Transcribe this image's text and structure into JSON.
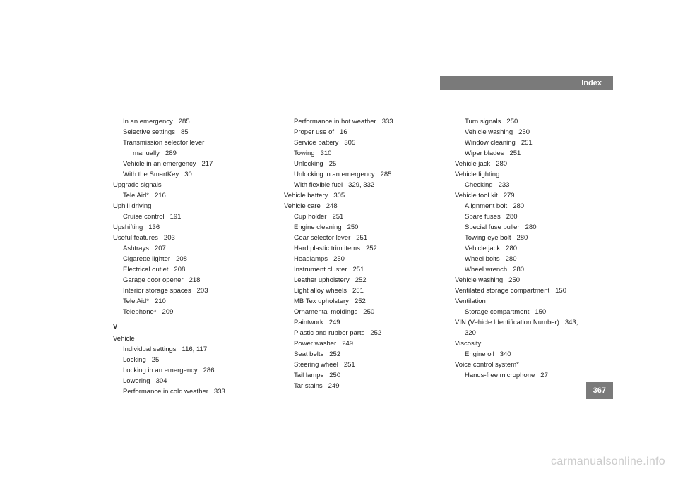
{
  "header": {
    "title": "Index"
  },
  "pagenum": "367",
  "watermark": "carmanualsonline.info",
  "col1": [
    {
      "indent": 1,
      "text": "In an emergency",
      "page": "285"
    },
    {
      "indent": 1,
      "text": "Selective settings",
      "page": "85"
    },
    {
      "indent": 1,
      "text": "Transmission selector lever"
    },
    {
      "indent": 2,
      "text": "manually",
      "page": "289"
    },
    {
      "indent": 1,
      "text": "Vehicle in an emergency",
      "page": "217"
    },
    {
      "indent": 1,
      "text": "With the SmartKey",
      "page": "30"
    },
    {
      "indent": 0,
      "text": "Upgrade signals"
    },
    {
      "indent": 1,
      "text": "Tele Aid*",
      "page": "216"
    },
    {
      "indent": 0,
      "text": "Uphill driving"
    },
    {
      "indent": 1,
      "text": "Cruise control",
      "page": "191"
    },
    {
      "indent": 0,
      "text": "Upshifting",
      "page": "136"
    },
    {
      "indent": 0,
      "text": "Useful features",
      "page": "203"
    },
    {
      "indent": 1,
      "text": "Ashtrays",
      "page": "207"
    },
    {
      "indent": 1,
      "text": "Cigarette lighter",
      "page": "208"
    },
    {
      "indent": 1,
      "text": "Electrical outlet",
      "page": "208"
    },
    {
      "indent": 1,
      "text": "Garage door opener",
      "page": "218"
    },
    {
      "indent": 1,
      "text": "Interior storage spaces",
      "page": "203"
    },
    {
      "indent": 1,
      "text": "Tele Aid*",
      "page": "210"
    },
    {
      "indent": 1,
      "text": "Telephone*",
      "page": "209"
    },
    {
      "indent": 0,
      "letter": "V"
    },
    {
      "indent": 0,
      "text": "Vehicle"
    },
    {
      "indent": 1,
      "text": "Individual settings",
      "page": "116, 117"
    },
    {
      "indent": 1,
      "text": "Locking",
      "page": "25"
    },
    {
      "indent": 1,
      "text": "Locking in an emergency",
      "page": "286"
    },
    {
      "indent": 1,
      "text": "Lowering",
      "page": "304"
    },
    {
      "indent": 1,
      "text": "Performance in cold weather",
      "page": "333"
    }
  ],
  "col2": [
    {
      "indent": 1,
      "text": "Performance in hot weather",
      "page": "333"
    },
    {
      "indent": 1,
      "text": "Proper use of",
      "page": "16"
    },
    {
      "indent": 1,
      "text": "Service battery",
      "page": "305"
    },
    {
      "indent": 1,
      "text": "Towing",
      "page": "310"
    },
    {
      "indent": 1,
      "text": "Unlocking",
      "page": "25"
    },
    {
      "indent": 1,
      "text": "Unlocking in an emergency",
      "page": "285"
    },
    {
      "indent": 1,
      "text": "With flexible fuel",
      "page": "329, 332"
    },
    {
      "indent": 0,
      "text": "Vehicle battery",
      "page": "305"
    },
    {
      "indent": 0,
      "text": "Vehicle care",
      "page": "248"
    },
    {
      "indent": 1,
      "text": "Cup holder",
      "page": "251"
    },
    {
      "indent": 1,
      "text": "Engine cleaning",
      "page": "250"
    },
    {
      "indent": 1,
      "text": "Gear selector lever",
      "page": "251"
    },
    {
      "indent": 1,
      "text": "Hard plastic trim items",
      "page": "252"
    },
    {
      "indent": 1,
      "text": "Headlamps",
      "page": "250"
    },
    {
      "indent": 1,
      "text": "Instrument cluster",
      "page": "251"
    },
    {
      "indent": 1,
      "text": "Leather upholstery",
      "page": "252"
    },
    {
      "indent": 1,
      "text": "Light alloy wheels",
      "page": "251"
    },
    {
      "indent": 1,
      "text": "MB Tex upholstery",
      "page": "252"
    },
    {
      "indent": 1,
      "text": "Ornamental moldings",
      "page": "250"
    },
    {
      "indent": 1,
      "text": "Paintwork",
      "page": "249"
    },
    {
      "indent": 1,
      "text": "Plastic and rubber parts",
      "page": "252"
    },
    {
      "indent": 1,
      "text": "Power washer",
      "page": "249"
    },
    {
      "indent": 1,
      "text": "Seat belts",
      "page": "252"
    },
    {
      "indent": 1,
      "text": "Steering wheel",
      "page": "251"
    },
    {
      "indent": 1,
      "text": "Tail lamps",
      "page": "250"
    },
    {
      "indent": 1,
      "text": "Tar stains",
      "page": "249"
    }
  ],
  "col3": [
    {
      "indent": 1,
      "text": "Turn signals",
      "page": "250"
    },
    {
      "indent": 1,
      "text": "Vehicle washing",
      "page": "250"
    },
    {
      "indent": 1,
      "text": "Window cleaning",
      "page": "251"
    },
    {
      "indent": 1,
      "text": "Wiper blades",
      "page": "251"
    },
    {
      "indent": 0,
      "text": "Vehicle jack",
      "page": "280"
    },
    {
      "indent": 0,
      "text": "Vehicle lighting"
    },
    {
      "indent": 1,
      "text": "Checking",
      "page": "233"
    },
    {
      "indent": 0,
      "text": "Vehicle tool kit",
      "page": "279"
    },
    {
      "indent": 1,
      "text": "Alignment bolt",
      "page": "280"
    },
    {
      "indent": 1,
      "text": "Spare fuses",
      "page": "280"
    },
    {
      "indent": 1,
      "text": "Special fuse puller",
      "page": "280"
    },
    {
      "indent": 1,
      "text": "Towing eye bolt",
      "page": "280"
    },
    {
      "indent": 1,
      "text": "Vehicle jack",
      "page": "280"
    },
    {
      "indent": 1,
      "text": "Wheel bolts",
      "page": "280"
    },
    {
      "indent": 1,
      "text": "Wheel wrench",
      "page": "280"
    },
    {
      "indent": 0,
      "text": "Vehicle washing",
      "page": "250"
    },
    {
      "indent": 0,
      "text": "Ventilated storage compartment",
      "page": "150"
    },
    {
      "indent": 0,
      "text": "Ventilation"
    },
    {
      "indent": 1,
      "text": "Storage compartment",
      "page": "150"
    },
    {
      "indent": 0,
      "text": "VIN (Vehicle Identification Number)",
      "page": "343,"
    },
    {
      "indent": 1,
      "text": "320"
    },
    {
      "indent": 0,
      "text": "Viscosity"
    },
    {
      "indent": 1,
      "text": "Engine oil",
      "page": "340"
    },
    {
      "indent": 0,
      "text": "Voice control system*"
    },
    {
      "indent": 1,
      "text": "Hands-free microphone",
      "page": "27"
    }
  ]
}
